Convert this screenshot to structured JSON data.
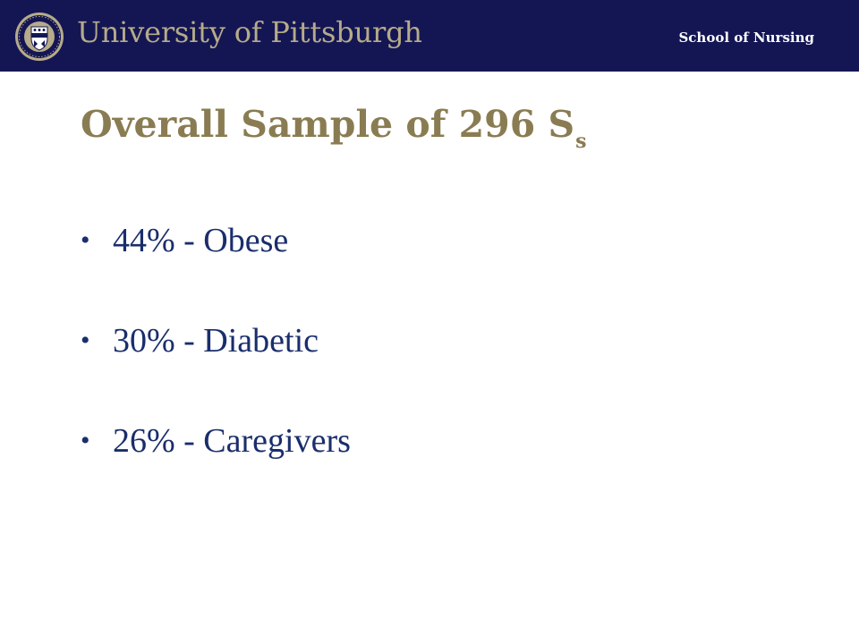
{
  "header": {
    "wordmark": "University of Pittsburgh",
    "school": "School of Nursing",
    "colors": {
      "bar": "#141654",
      "wordmark": "#b6ab8a"
    },
    "logo_icon": "university-seal"
  },
  "slide": {
    "title_main": "Overall Sample of 296 S",
    "title_sub": "s",
    "bullets": [
      {
        "text": "44% - Obese"
      },
      {
        "text": "30% - Diabetic"
      },
      {
        "text": "26% - Caregivers"
      }
    ]
  },
  "colors": {
    "title": "#8a7c52",
    "body": "#1a2e6c"
  }
}
